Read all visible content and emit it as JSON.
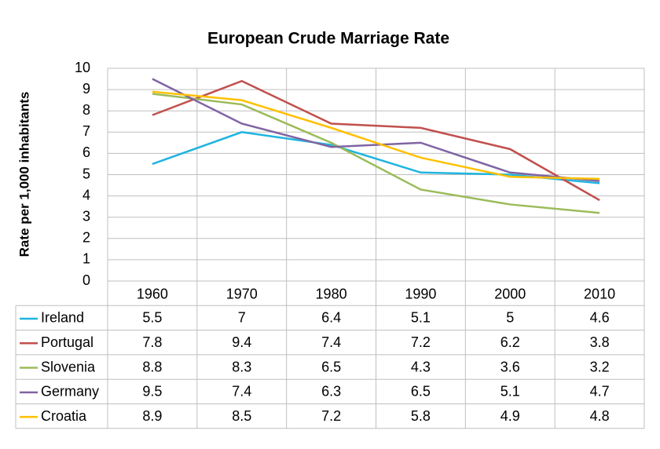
{
  "chart_data": {
    "type": "line",
    "title": "European Crude Marriage Rate",
    "y_label": "Rate per 1,000 inhabitants",
    "categories": [
      "1960",
      "1970",
      "1980",
      "1990",
      "2000",
      "2010"
    ],
    "ylim": [
      0,
      10
    ],
    "yticks": [
      0,
      1,
      2,
      3,
      4,
      5,
      6,
      7,
      8,
      9,
      10
    ],
    "grid": true,
    "series": [
      {
        "name": "Ireland",
        "color": "#1fb4e0",
        "values": [
          5.5,
          7,
          6.4,
          5.1,
          5,
          4.6
        ]
      },
      {
        "name": "Portugal",
        "color": "#c0504d",
        "values": [
          7.8,
          9.4,
          7.4,
          7.2,
          6.2,
          3.8
        ]
      },
      {
        "name": "Slovenia",
        "color": "#9bbb59",
        "values": [
          8.8,
          8.3,
          6.5,
          4.3,
          3.6,
          3.2
        ]
      },
      {
        "name": "Germany",
        "color": "#8064a2",
        "values": [
          9.5,
          7.4,
          6.3,
          6.5,
          5.1,
          4.7
        ]
      },
      {
        "name": "Croatia",
        "color": "#ffc000",
        "values": [
          8.9,
          8.5,
          7.2,
          5.8,
          4.9,
          4.8
        ]
      }
    ]
  }
}
